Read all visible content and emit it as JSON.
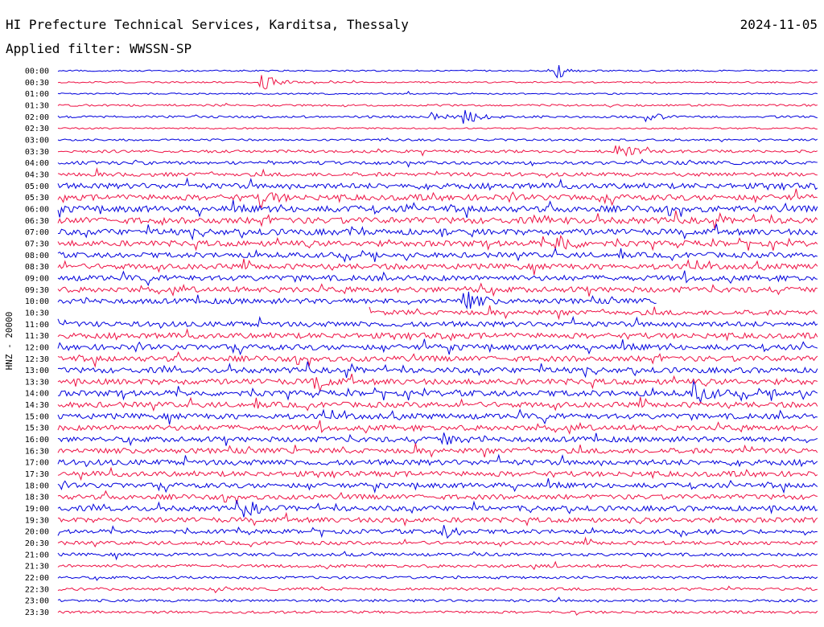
{
  "header": {
    "title": "HI Prefecture Technical Services, Karditsa, Thessaly",
    "date": "2024-11-05",
    "filter": "Applied filter: WWSSN-SP"
  },
  "colors": {
    "trace_a": "#0000dd",
    "trace_b": "#ee1144",
    "text": "#000000",
    "background": "#ffffff"
  },
  "chart_data": {
    "type": "line",
    "title": "HI Prefecture Technical Services, Karditsa, Thessaly",
    "subtitle": "Applied filter: WWSSN-SP",
    "date": "2024-11-05",
    "ylabel": "HNZ - 20000",
    "xlabel": "",
    "row_interval_minutes": 30,
    "row_labels": [
      "00:00",
      "00:30",
      "01:00",
      "01:30",
      "02:00",
      "02:30",
      "03:00",
      "03:30",
      "04:00",
      "04:30",
      "05:00",
      "05:30",
      "06:00",
      "06:30",
      "07:00",
      "07:30",
      "08:00",
      "08:30",
      "09:00",
      "09:30",
      "10:00",
      "10:30",
      "11:00",
      "11:30",
      "12:00",
      "12:30",
      "13:00",
      "13:30",
      "14:00",
      "14:30",
      "15:00",
      "15:30",
      "16:00",
      "16:30",
      "17:00",
      "17:30",
      "18:00",
      "18:30",
      "19:00",
      "19:30",
      "20:00",
      "20:30",
      "21:00",
      "21:30",
      "22:00",
      "22:30",
      "23:00",
      "23:30"
    ],
    "series": [
      {
        "color": "#0000dd",
        "rows": "even"
      },
      {
        "color": "#ee1144",
        "rows": "odd"
      }
    ],
    "relative_noise_level": [
      0.1,
      0.1,
      0.1,
      0.2,
      0.25,
      0.1,
      0.2,
      0.35,
      0.45,
      0.55,
      0.85,
      0.9,
      1.0,
      1.0,
      0.95,
      0.9,
      0.8,
      0.85,
      0.85,
      0.85,
      0.8,
      0.75,
      0.8,
      0.85,
      0.85,
      0.85,
      0.85,
      0.9,
      0.9,
      0.85,
      0.85,
      0.85,
      0.8,
      0.8,
      0.85,
      0.8,
      0.75,
      0.75,
      0.8,
      0.75,
      0.6,
      0.5,
      0.4,
      0.4,
      0.3,
      0.35,
      0.3,
      0.3
    ],
    "gaps": [
      {
        "row": "10:00",
        "trace_end_fraction": 0.79
      },
      {
        "row": "10:30",
        "trace_start_fraction": 0.41
      }
    ],
    "events": [
      {
        "row": "00:00",
        "pos": 0.66,
        "amp": 0.9
      },
      {
        "row": "00:30",
        "pos": 0.27,
        "amp": 1.3
      },
      {
        "row": "02:00",
        "pos": 0.49,
        "amp": 0.6
      },
      {
        "row": "02:00",
        "pos": 0.54,
        "amp": 0.8
      },
      {
        "row": "02:00",
        "pos": 0.78,
        "amp": 0.5
      },
      {
        "row": "03:30",
        "pos": 0.74,
        "amp": 1.0
      },
      {
        "row": "05:30",
        "pos": 0.27,
        "amp": 1.0
      },
      {
        "row": "07:30",
        "pos": 0.66,
        "amp": 1.4
      },
      {
        "row": "10:00",
        "pos": 0.54,
        "amp": 1.1
      },
      {
        "row": "13:30",
        "pos": 0.34,
        "amp": 0.9
      },
      {
        "row": "14:00",
        "pos": 0.84,
        "amp": 1.4
      },
      {
        "row": "16:00",
        "pos": 0.51,
        "amp": 0.7
      },
      {
        "row": "19:00",
        "pos": 0.25,
        "amp": 0.9
      },
      {
        "row": "20:00",
        "pos": 0.51,
        "amp": 0.8
      }
    ]
  }
}
